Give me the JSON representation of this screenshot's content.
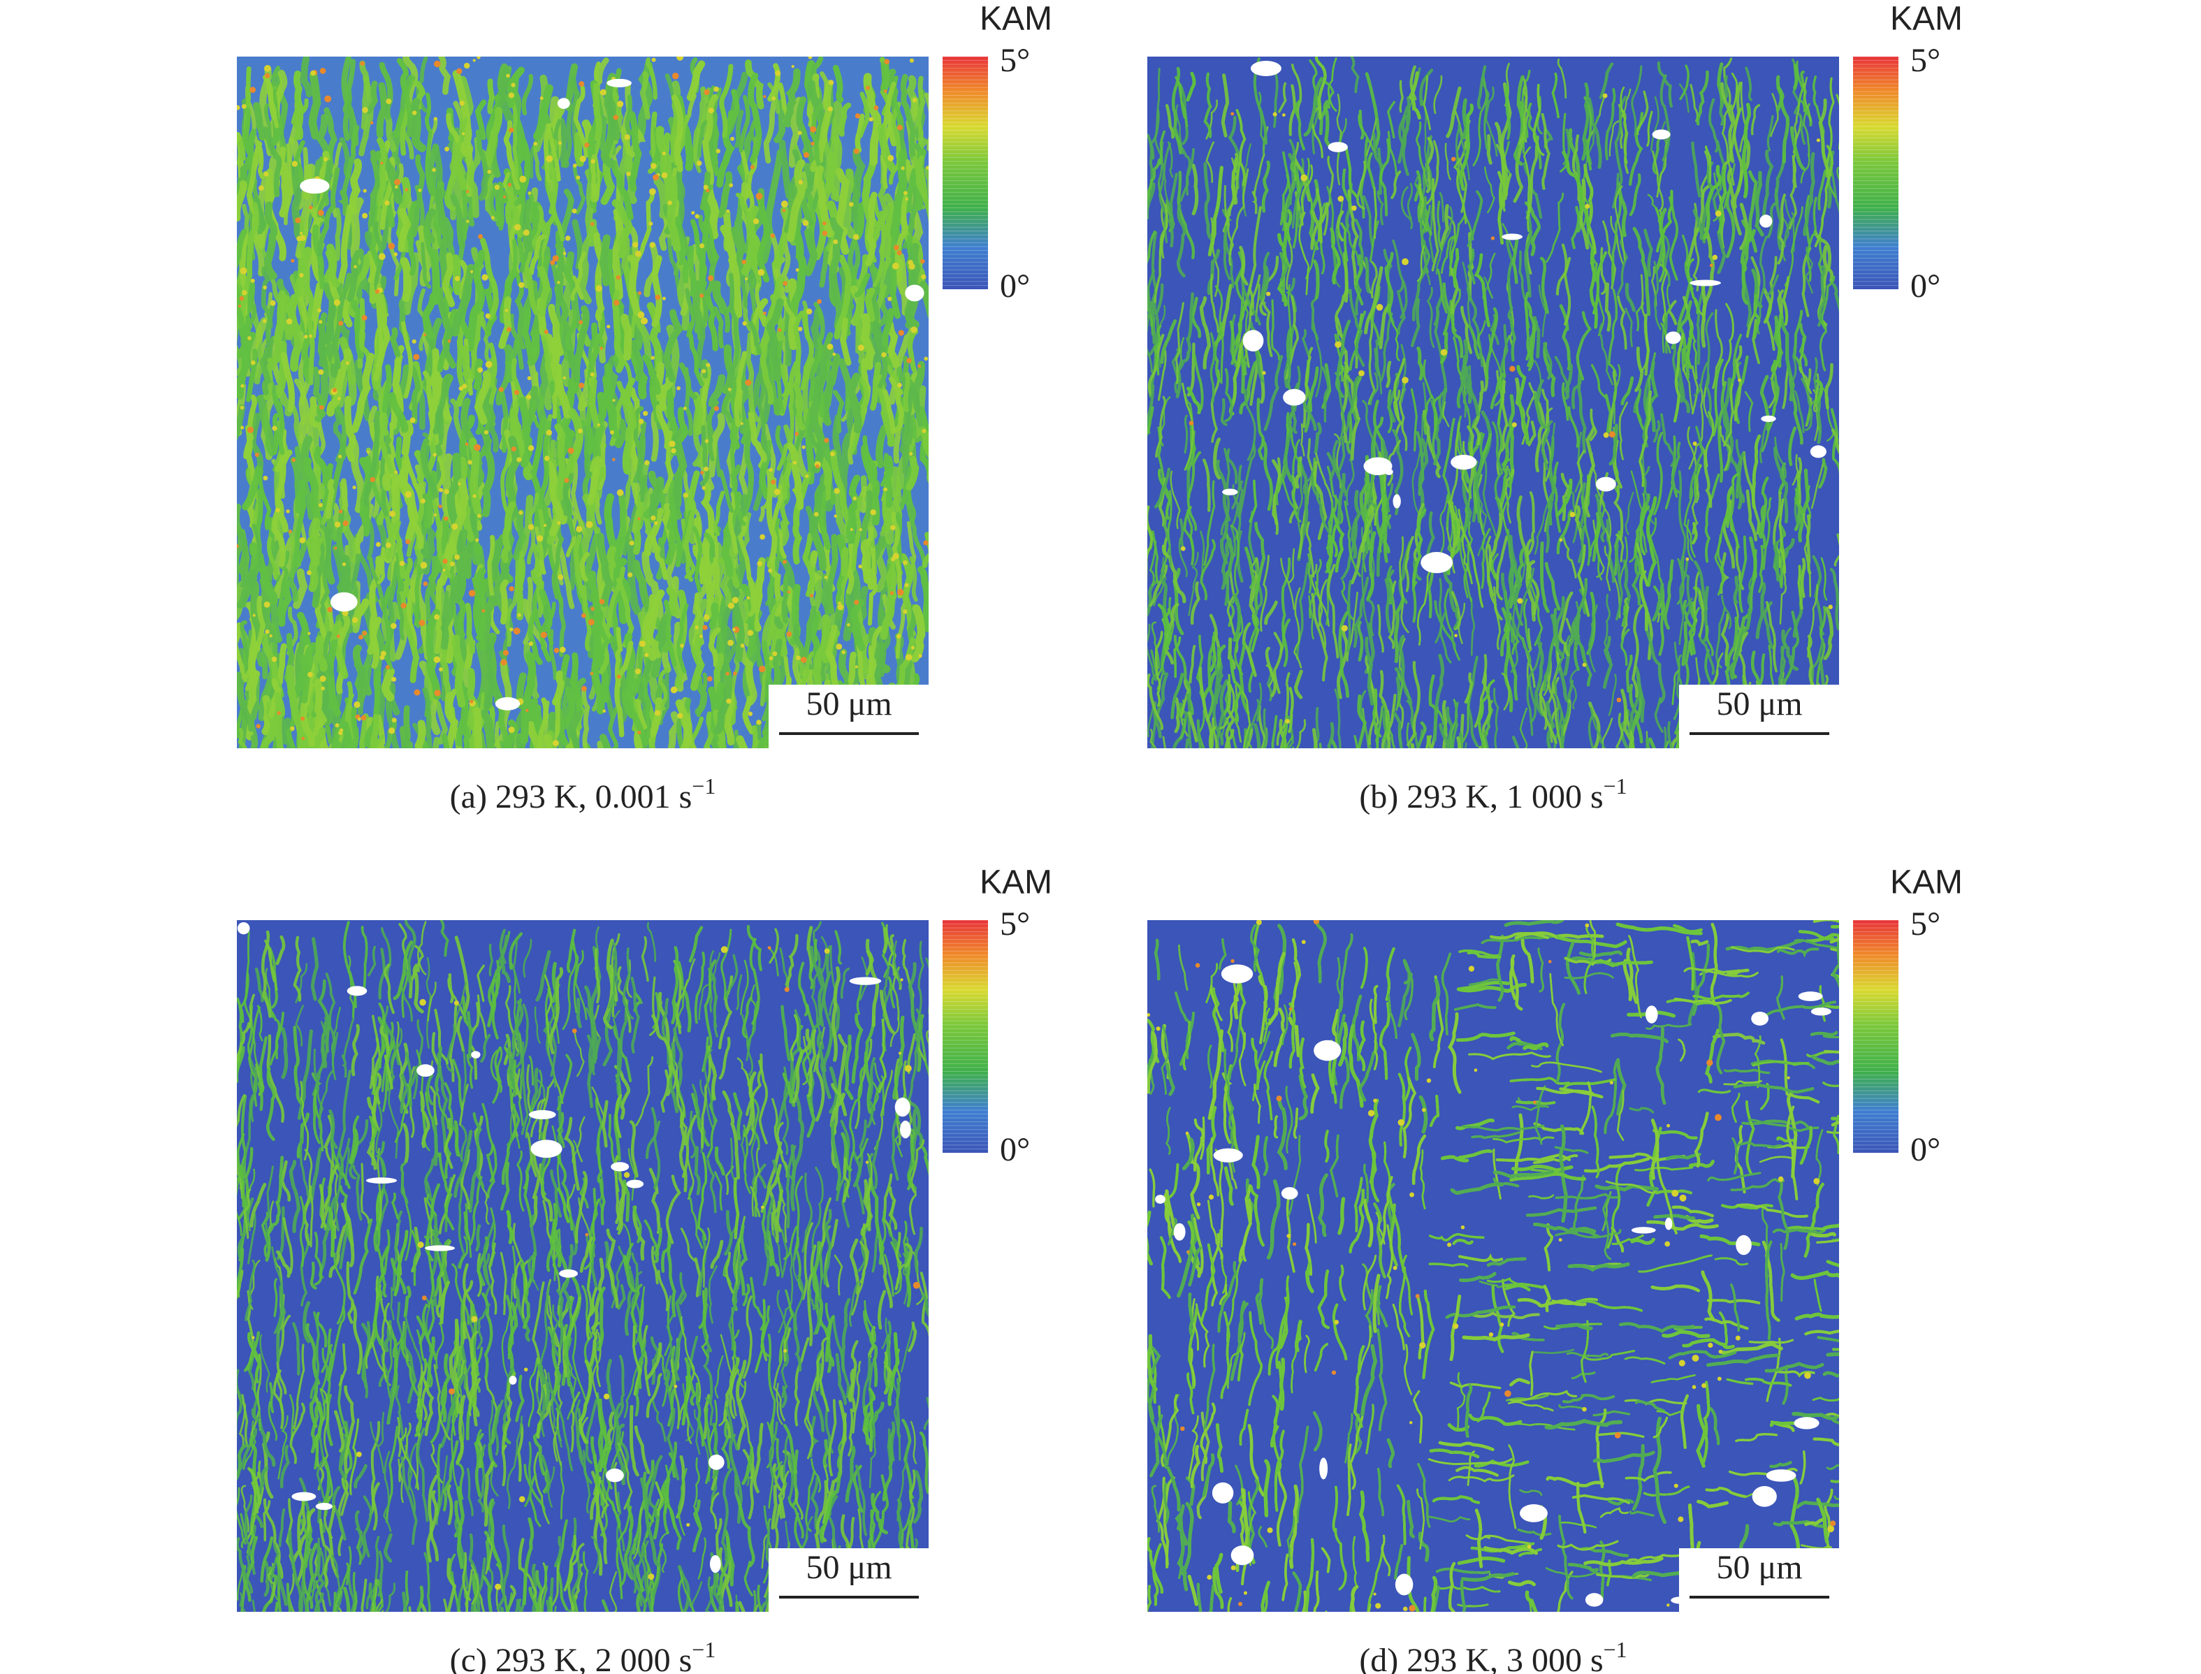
{
  "panels": [
    {
      "caption": "(a) 293 K, 0.001 s",
      "caption_sup": "−1",
      "colorbar_title": "KAM",
      "colorbar_max": "5°",
      "colorbar_min": "0°",
      "scale_bar": "50 μm"
    },
    {
      "caption": "(b) 293 K, 1 000 s",
      "caption_sup": "−1",
      "colorbar_title": "KAM",
      "colorbar_max": "5°",
      "colorbar_min": "0°",
      "scale_bar": "50 μm"
    },
    {
      "caption": "(c) 293 K, 2 000 s",
      "caption_sup": "−1",
      "colorbar_title": "KAM",
      "colorbar_max": "5°",
      "colorbar_min": "0°",
      "scale_bar": "50 μm"
    },
    {
      "caption": "(d) 293 K, 3 000 s",
      "caption_sup": "−1",
      "colorbar_title": "KAM",
      "colorbar_max": "5°",
      "colorbar_min": "0°",
      "scale_bar": "50 μm"
    }
  ]
}
